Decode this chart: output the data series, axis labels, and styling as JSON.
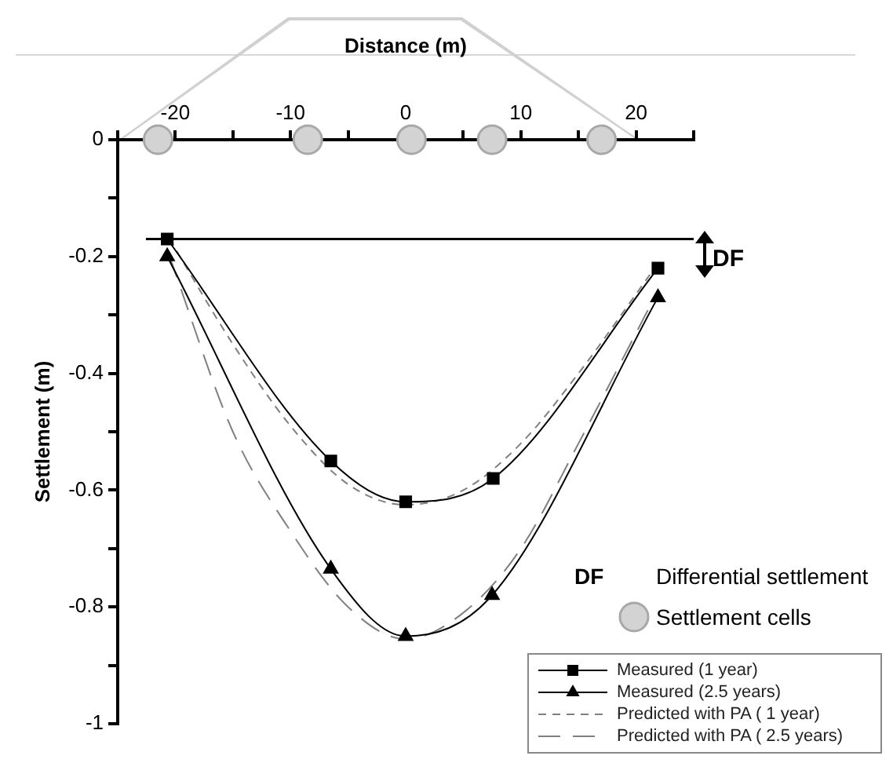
{
  "chart_data": {
    "type": "line",
    "xlabel": "Distance (m)",
    "ylabel": "Settlement (m)",
    "xlim": [
      -25,
      25
    ],
    "xticks": [
      {
        "value": -25,
        "label": null
      },
      -20,
      {
        "value": -15,
        "label": null
      },
      -10,
      {
        "value": -5,
        "label": null
      },
      0,
      {
        "value": 5,
        "label": null
      },
      10,
      {
        "value": 15,
        "label": null
      },
      20,
      {
        "value": 25,
        "label": null
      }
    ],
    "ylim": [
      -1,
      0
    ],
    "yticks": [
      -1,
      {
        "value": -0.9,
        "label": null
      },
      -0.8,
      {
        "value": -0.7,
        "label": null
      },
      -0.6,
      {
        "value": -0.5,
        "label": null
      },
      -0.4,
      {
        "value": -0.3,
        "label": null
      },
      -0.2,
      {
        "value": -0.1,
        "label": null
      },
      0
    ],
    "grid": false,
    "legend": "bottom right",
    "ref_lines": [
      {
        "axis": "y",
        "value": -0.17,
        "label": "DF",
        "color": "#000000"
      }
    ],
    "annotations": [
      "DF",
      "Differential settlement"
    ],
    "series": [
      {
        "name": "Measured (1 year)",
        "color": "#000000",
        "marker": "square",
        "line_style": "solid",
        "x": [
          -20.7,
          -6.5,
          0,
          7.6,
          21.9
        ],
        "values": [
          -0.17,
          -0.55,
          -0.62,
          -0.58,
          -0.22
        ]
      },
      {
        "name": "Measured (2.5 years)",
        "color": "#000000",
        "marker": "triangle",
        "line_style": "solid",
        "x": [
          -20.7,
          -6.5,
          0,
          7.5,
          21.9
        ],
        "values": [
          -0.2,
          -0.735,
          -0.85,
          -0.78,
          -0.27
        ]
      },
      {
        "name": "Predicted with PA ( 1 year)",
        "color": "#808080",
        "marker": "none",
        "line_style": "dashed",
        "x": [
          -20.5,
          -15,
          -10,
          -5,
          0,
          5,
          10,
          15,
          21.6
        ],
        "values": [
          -0.17,
          -0.35,
          -0.49,
          -0.59,
          -0.625,
          -0.6,
          -0.52,
          -0.4,
          -0.22
        ]
      },
      {
        "name": "Predicted with PA ( 2.5 years)",
        "color": "#808080",
        "marker": "none",
        "line_style": "dashed",
        "x": [
          -20.5,
          -15,
          -10,
          -5,
          0,
          5,
          10,
          15,
          21.6
        ],
        "values": [
          -0.2,
          -0.5,
          -0.67,
          -0.8,
          -0.855,
          -0.81,
          -0.7,
          -0.52,
          -0.27
        ]
      },
      {
        "name": "Settlement cells",
        "type": "scatter",
        "color": "#d3d3d3",
        "marker": "circle",
        "x": [
          -21.5,
          -8.5,
          0.5,
          7.5,
          17
        ],
        "values": [
          0,
          0,
          0,
          0,
          0
        ]
      }
    ]
  }
}
